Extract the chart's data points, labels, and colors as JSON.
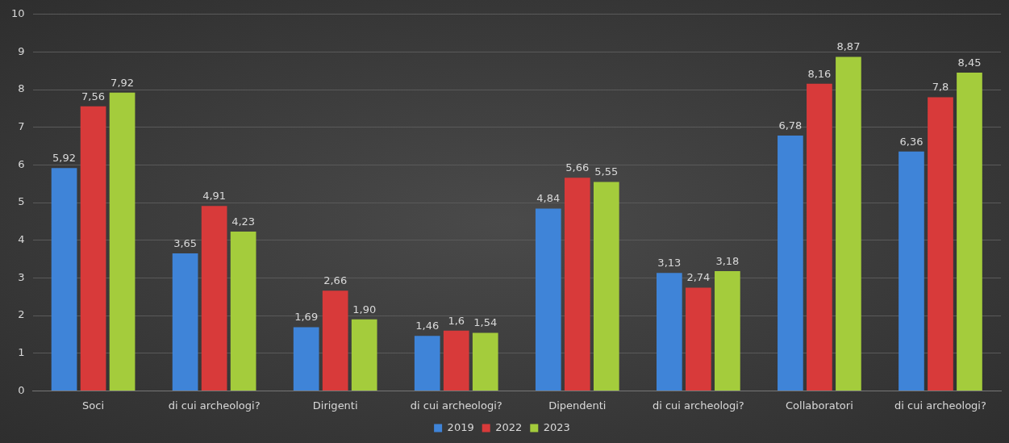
{
  "chart_data": {
    "type": "bar",
    "categories": [
      "Soci",
      "di cui archeologi?",
      "Dirigenti",
      "di cui archeologi?",
      "Dipendenti",
      "di cui archeologi?",
      "Collaboratori",
      "di cui archeologi?"
    ],
    "series": [
      {
        "name": "2019",
        "color": "#3f84d8",
        "values": [
          5.92,
          3.65,
          1.69,
          1.46,
          4.84,
          3.13,
          6.78,
          6.36
        ],
        "value_labels": [
          "5,92",
          "3,65",
          "1,69",
          "1,46",
          "4,84",
          "3,13",
          "6,78",
          "6,36"
        ]
      },
      {
        "name": "2022",
        "color": "#d83a3a",
        "values": [
          7.56,
          4.91,
          2.66,
          1.6,
          5.66,
          2.74,
          8.16,
          7.8
        ],
        "value_labels": [
          "7,56",
          "4,91",
          "2,66",
          "1,6",
          "5,66",
          "2,74",
          "8,16",
          "7,8"
        ]
      },
      {
        "name": "2023",
        "color": "#a4cc3c",
        "values": [
          7.92,
          4.23,
          1.9,
          1.54,
          5.55,
          3.18,
          8.87,
          8.45
        ],
        "value_labels": [
          "7,92",
          "4,23",
          "1,90",
          "1,54",
          "5,55",
          "3,18",
          "8,87",
          "8,45"
        ]
      }
    ],
    "ylim": [
      0,
      10
    ],
    "yticks": [
      0,
      1,
      2,
      3,
      4,
      5,
      6,
      7,
      8,
      9,
      10
    ],
    "grid": "y",
    "legend": "bottom"
  }
}
